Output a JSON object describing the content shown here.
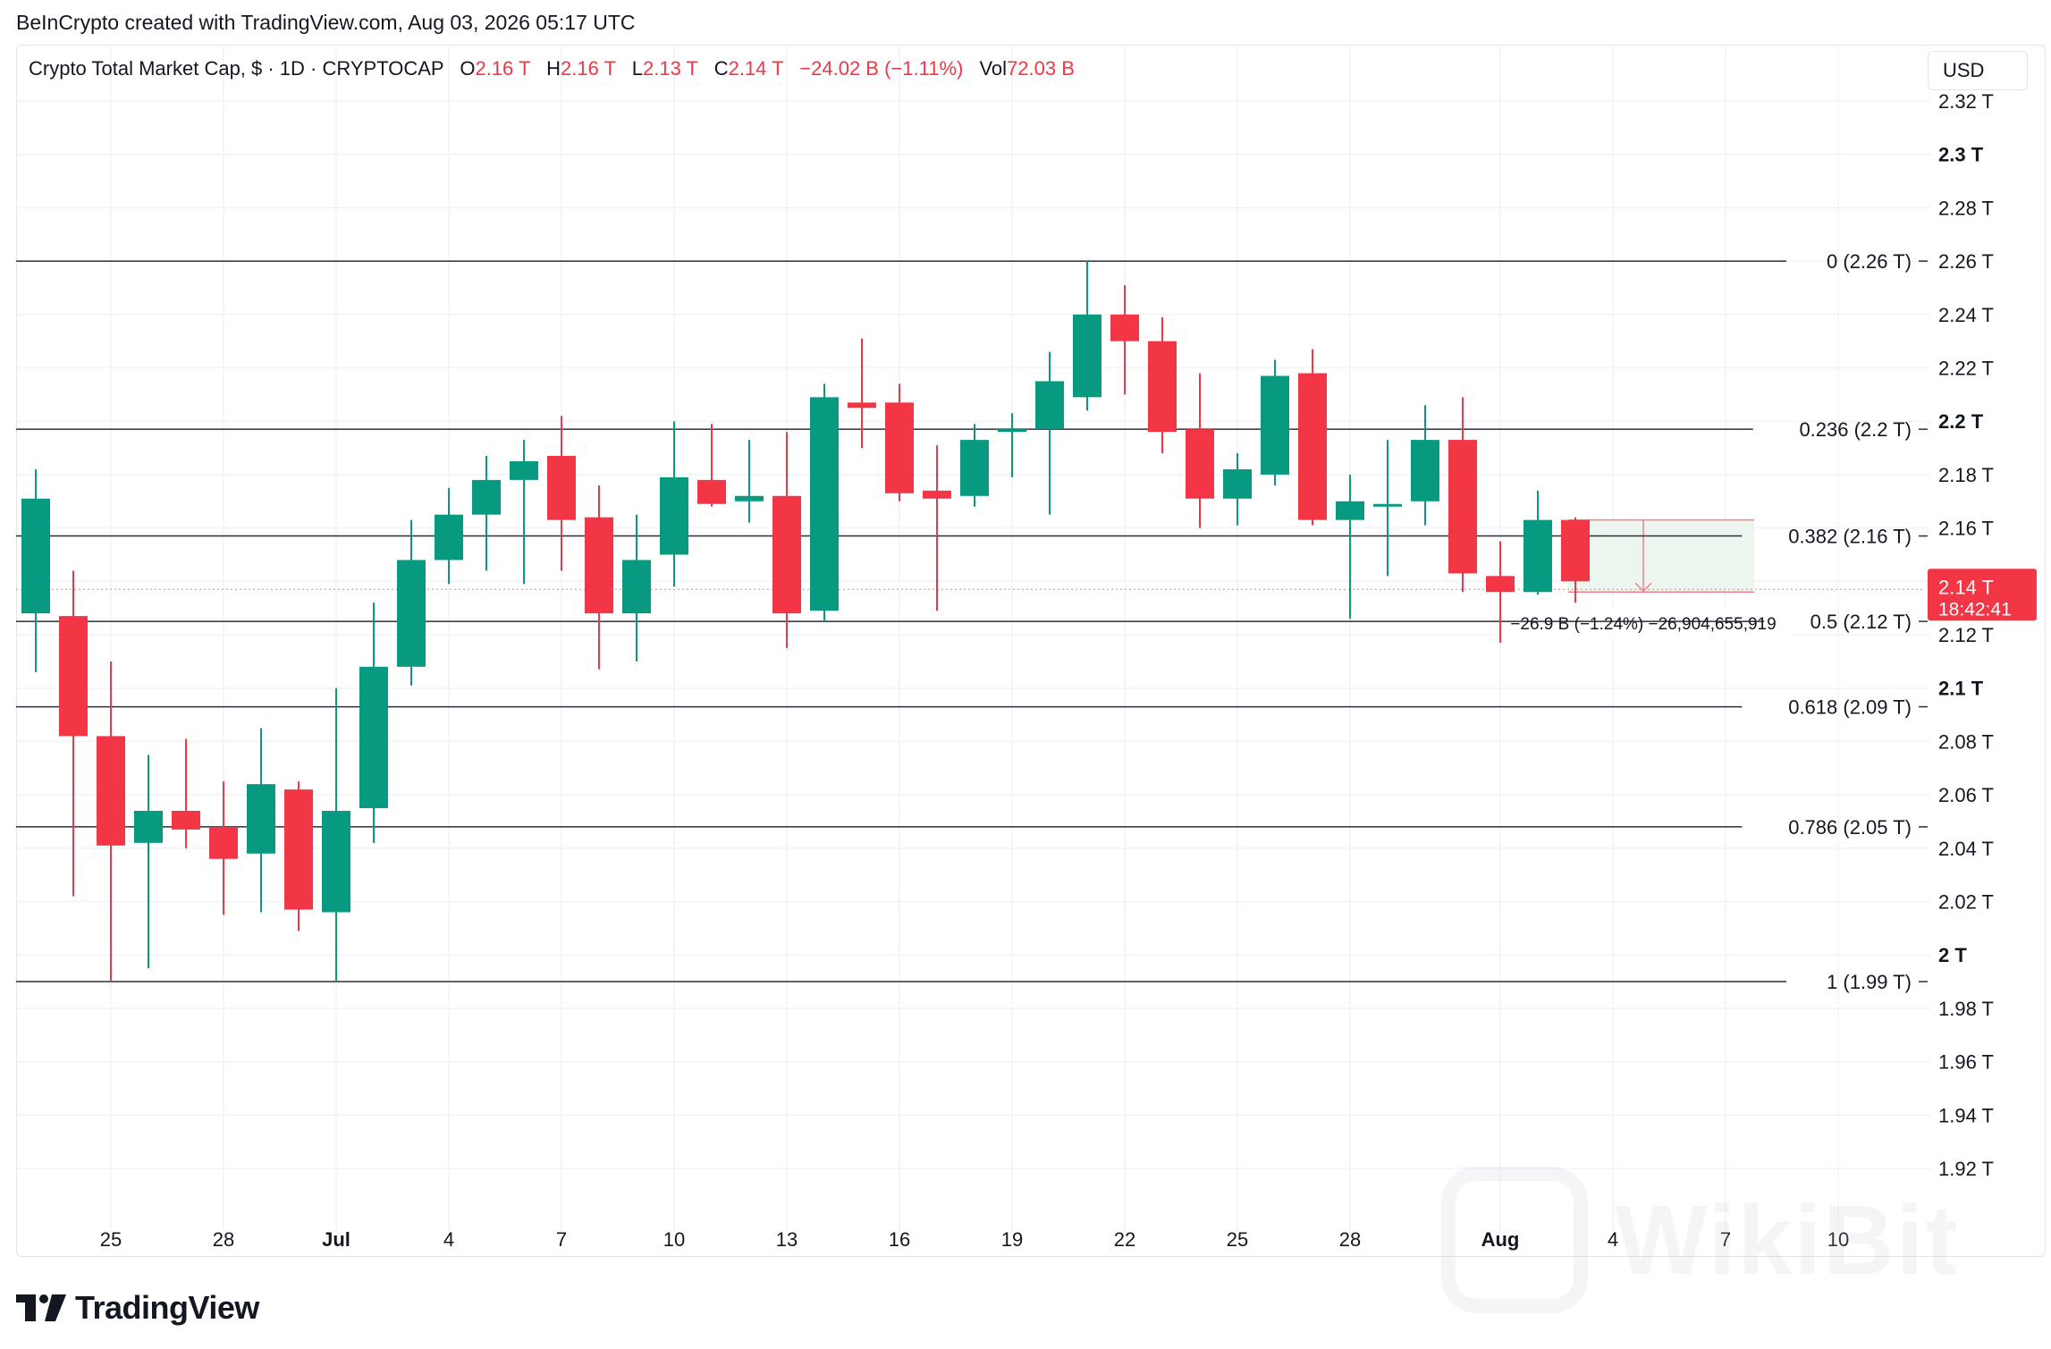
{
  "credit": "BeInCrypto created with TradingView.com, Aug 03, 2026 05:17 UTC",
  "legend": {
    "symbol": "Crypto Total Market Cap, $ · 1D · CRYPTOCAP",
    "o_label": "O",
    "o_value": "2.16 T",
    "h_label": "H",
    "h_value": "2.16 T",
    "l_label": "L",
    "l_value": "2.13 T",
    "c_label": "C",
    "c_value": "2.14 T",
    "change": "−24.02 B (−1.11%)",
    "vol_label": "Vol",
    "vol_value": "72.03 B"
  },
  "currency": "USD",
  "brand": "TradingView",
  "watermark": "WikiBit",
  "colors": {
    "up": "#089981",
    "down": "#f23645",
    "grid": "#f0f3fa",
    "text": "#131722"
  },
  "chart_data": {
    "type": "candlestick",
    "y_unit": "T",
    "ylim": [
      1.905,
      2.325
    ],
    "y_ticks": [
      {
        "value": 2.32,
        "label": "2.32 T",
        "bold": false
      },
      {
        "value": 2.3,
        "label": "2.3 T",
        "bold": true
      },
      {
        "value": 2.28,
        "label": "2.28 T",
        "bold": false
      },
      {
        "value": 2.26,
        "label": "2.26 T",
        "bold": false
      },
      {
        "value": 2.24,
        "label": "2.24 T",
        "bold": false
      },
      {
        "value": 2.22,
        "label": "2.22 T",
        "bold": false
      },
      {
        "value": 2.2,
        "label": "2.2 T",
        "bold": true
      },
      {
        "value": 2.18,
        "label": "2.18 T",
        "bold": false
      },
      {
        "value": 2.16,
        "label": "2.16 T",
        "bold": false
      },
      {
        "value": 2.14,
        "label": "2.14 T",
        "bold": false
      },
      {
        "value": 2.12,
        "label": "2.12 T",
        "bold": false
      },
      {
        "value": 2.1,
        "label": "2.1 T",
        "bold": true
      },
      {
        "value": 2.08,
        "label": "2.08 T",
        "bold": false
      },
      {
        "value": 2.06,
        "label": "2.06 T",
        "bold": false
      },
      {
        "value": 2.04,
        "label": "2.04 T",
        "bold": false
      },
      {
        "value": 2.02,
        "label": "2.02 T",
        "bold": false
      },
      {
        "value": 2.0,
        "label": "2 T",
        "bold": true
      },
      {
        "value": 1.98,
        "label": "1.98 T",
        "bold": false
      },
      {
        "value": 1.96,
        "label": "1.96 T",
        "bold": false
      },
      {
        "value": 1.94,
        "label": "1.94 T",
        "bold": false
      },
      {
        "value": 1.92,
        "label": "1.92 T",
        "bold": false
      }
    ],
    "x_ticks": [
      {
        "index": 2,
        "label": "25",
        "bold": false
      },
      {
        "index": 5,
        "label": "28",
        "bold": false
      },
      {
        "index": 8,
        "label": "Jul",
        "bold": true
      },
      {
        "index": 11,
        "label": "4",
        "bold": false
      },
      {
        "index": 14,
        "label": "7",
        "bold": false
      },
      {
        "index": 17,
        "label": "10",
        "bold": false
      },
      {
        "index": 20,
        "label": "13",
        "bold": false
      },
      {
        "index": 23,
        "label": "16",
        "bold": false
      },
      {
        "index": 26,
        "label": "19",
        "bold": false
      },
      {
        "index": 29,
        "label": "22",
        "bold": false
      },
      {
        "index": 32,
        "label": "25",
        "bold": false
      },
      {
        "index": 35,
        "label": "28",
        "bold": false
      },
      {
        "index": 39,
        "label": "Aug",
        "bold": true
      },
      {
        "index": 42,
        "label": "4",
        "bold": false
      },
      {
        "index": 45,
        "label": "7",
        "bold": false
      },
      {
        "index": 48,
        "label": "10",
        "bold": false
      }
    ],
    "candles": [
      {
        "o": 2.128,
        "h": 2.182,
        "l": 2.106,
        "c": 2.171
      },
      {
        "o": 2.127,
        "h": 2.144,
        "l": 2.022,
        "c": 2.082
      },
      {
        "o": 2.082,
        "h": 2.11,
        "l": 1.99,
        "c": 2.041
      },
      {
        "o": 2.042,
        "h": 2.075,
        "l": 1.995,
        "c": 2.054
      },
      {
        "o": 2.054,
        "h": 2.081,
        "l": 2.04,
        "c": 2.047
      },
      {
        "o": 2.048,
        "h": 2.065,
        "l": 2.015,
        "c": 2.036
      },
      {
        "o": 2.038,
        "h": 2.085,
        "l": 2.016,
        "c": 2.064
      },
      {
        "o": 2.062,
        "h": 2.065,
        "l": 2.009,
        "c": 2.017
      },
      {
        "o": 2.016,
        "h": 2.1,
        "l": 1.99,
        "c": 2.054
      },
      {
        "o": 2.055,
        "h": 2.132,
        "l": 2.042,
        "c": 2.108
      },
      {
        "o": 2.108,
        "h": 2.163,
        "l": 2.101,
        "c": 2.148
      },
      {
        "o": 2.148,
        "h": 2.175,
        "l": 2.139,
        "c": 2.165
      },
      {
        "o": 2.165,
        "h": 2.187,
        "l": 2.144,
        "c": 2.178
      },
      {
        "o": 2.178,
        "h": 2.193,
        "l": 2.139,
        "c": 2.185
      },
      {
        "o": 2.187,
        "h": 2.202,
        "l": 2.144,
        "c": 2.163
      },
      {
        "o": 2.164,
        "h": 2.176,
        "l": 2.107,
        "c": 2.128
      },
      {
        "o": 2.128,
        "h": 2.165,
        "l": 2.11,
        "c": 2.148
      },
      {
        "o": 2.15,
        "h": 2.2,
        "l": 2.138,
        "c": 2.179
      },
      {
        "o": 2.178,
        "h": 2.199,
        "l": 2.168,
        "c": 2.169
      },
      {
        "o": 2.17,
        "h": 2.193,
        "l": 2.162,
        "c": 2.172
      },
      {
        "o": 2.172,
        "h": 2.196,
        "l": 2.115,
        "c": 2.128
      },
      {
        "o": 2.129,
        "h": 2.214,
        "l": 2.125,
        "c": 2.209
      },
      {
        "o": 2.207,
        "h": 2.231,
        "l": 2.19,
        "c": 2.205
      },
      {
        "o": 2.207,
        "h": 2.214,
        "l": 2.17,
        "c": 2.173
      },
      {
        "o": 2.174,
        "h": 2.191,
        "l": 2.129,
        "c": 2.171
      },
      {
        "o": 2.172,
        "h": 2.199,
        "l": 2.168,
        "c": 2.193
      },
      {
        "o": 2.197,
        "h": 2.203,
        "l": 2.179,
        "c": 2.197
      },
      {
        "o": 2.197,
        "h": 2.226,
        "l": 2.165,
        "c": 2.215
      },
      {
        "o": 2.209,
        "h": 2.26,
        "l": 2.204,
        "c": 2.24
      },
      {
        "o": 2.24,
        "h": 2.251,
        "l": 2.21,
        "c": 2.23
      },
      {
        "o": 2.23,
        "h": 2.239,
        "l": 2.188,
        "c": 2.196
      },
      {
        "o": 2.197,
        "h": 2.218,
        "l": 2.16,
        "c": 2.171
      },
      {
        "o": 2.171,
        "h": 2.188,
        "l": 2.161,
        "c": 2.182
      },
      {
        "o": 2.18,
        "h": 2.223,
        "l": 2.176,
        "c": 2.217
      },
      {
        "o": 2.218,
        "h": 2.227,
        "l": 2.161,
        "c": 2.163
      },
      {
        "o": 2.163,
        "h": 2.18,
        "l": 2.126,
        "c": 2.17
      },
      {
        "o": 2.168,
        "h": 2.193,
        "l": 2.142,
        "c": 2.169
      },
      {
        "o": 2.17,
        "h": 2.206,
        "l": 2.161,
        "c": 2.193
      },
      {
        "o": 2.193,
        "h": 2.209,
        "l": 2.136,
        "c": 2.143
      },
      {
        "o": 2.142,
        "h": 2.155,
        "l": 2.117,
        "c": 2.136
      },
      {
        "o": 2.136,
        "h": 2.174,
        "l": 2.135,
        "c": 2.163
      },
      {
        "o": 2.163,
        "h": 2.164,
        "l": 2.132,
        "c": 2.14
      }
    ],
    "fib_levels": [
      {
        "value": 2.26,
        "label": "0 (2.26 T)"
      },
      {
        "value": 2.197,
        "label": "0.236 (2.2 T)"
      },
      {
        "value": 2.157,
        "label": "0.382 (2.16 T)"
      },
      {
        "value": 2.125,
        "label": "0.5 (2.12 T)"
      },
      {
        "value": 2.093,
        "label": "0.618 (2.09 T)"
      },
      {
        "value": 2.048,
        "label": "0.786 (2.05 T)"
      },
      {
        "value": 1.99,
        "label": "1 (1.99 T)"
      }
    ],
    "current_price": {
      "value": 2.137,
      "label": "2.14 T",
      "countdown": "18:42:41"
    },
    "projection": {
      "top": 2.163,
      "bottom": 2.136,
      "label": "−26.9 B (−1.24%) −26,904,655,919"
    }
  }
}
